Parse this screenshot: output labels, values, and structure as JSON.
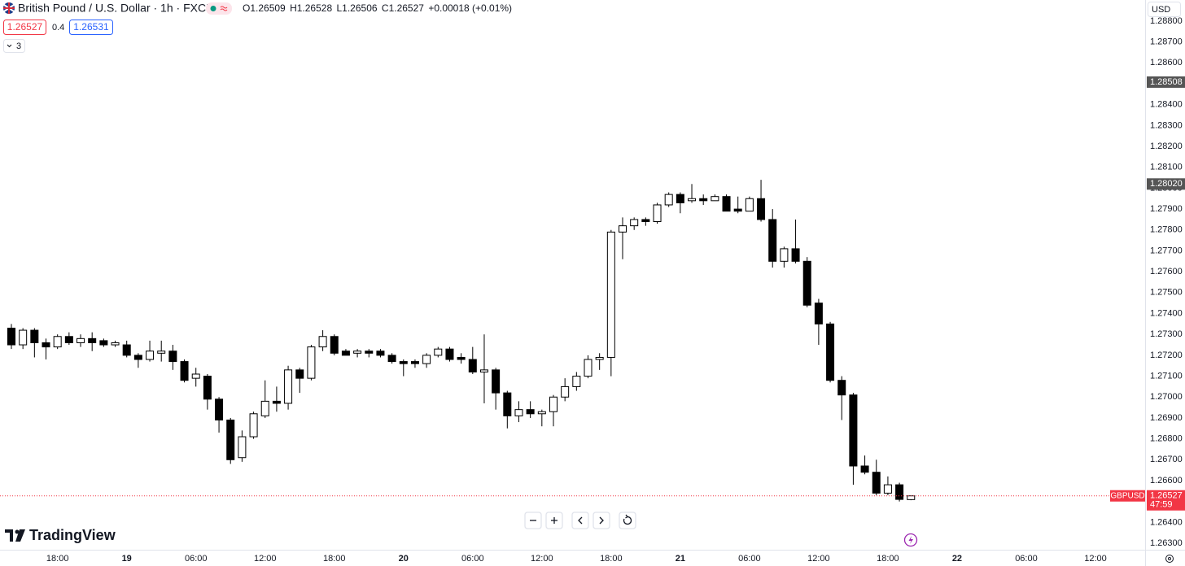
{
  "header": {
    "title": "British Pound / U.S. Dollar · 1h · FXCM",
    "ohlc_letters": [
      "O",
      "H",
      "L",
      "C"
    ],
    "change": "+0.00018 (+0.01%)",
    "sell_price": 1.26527,
    "spread": 0.4,
    "buy_price": 1.26531,
    "indicator_count": 3,
    "logo": "TradingView"
  },
  "chart_data": {
    "type": "candlestick",
    "currency": "USD",
    "categories": [
      null,
      null,
      null,
      null,
      "18:00",
      null,
      null,
      null,
      null,
      null,
      "19",
      null,
      null,
      null,
      null,
      null,
      "06:00",
      null,
      null,
      null,
      null,
      null,
      "12:00",
      null,
      null,
      null,
      null,
      null,
      "18:00",
      null,
      null,
      null,
      null,
      null,
      "20",
      null,
      null,
      null,
      null,
      null,
      "06:00",
      null,
      null,
      null,
      null,
      null,
      "12:00",
      null,
      null,
      null,
      null,
      null,
      "18:00",
      null,
      null,
      null,
      null,
      null,
      "21",
      null,
      null,
      null,
      null,
      null,
      "06:00",
      null,
      null,
      null,
      null,
      null,
      "12:00",
      null,
      null,
      null,
      null,
      null,
      "18:00",
      null,
      null,
      null,
      null,
      null,
      "22",
      null,
      null,
      null,
      null,
      null,
      "06:00",
      null,
      null,
      null,
      null,
      null,
      "12:00"
    ],
    "open": [
      1.2733,
      1.2725,
      1.2732,
      1.2726,
      1.2724,
      1.2729,
      1.2726,
      1.2728,
      1.2727,
      1.2725,
      1.2725,
      1.272,
      1.2718,
      1.2721,
      1.2722,
      1.2717,
      1.2709,
      1.271,
      1.2699,
      1.2689,
      1.2671,
      1.2681,
      1.2691,
      1.2698,
      1.2697,
      1.2713,
      1.2709,
      1.2724,
      1.2729,
      1.2722,
      1.2721,
      1.2722,
      1.2722,
      1.272,
      1.2717,
      1.2717,
      1.2716,
      1.272,
      1.2723,
      1.2719,
      1.2718,
      1.2712,
      1.2713,
      1.2702,
      1.2691,
      1.2694,
      1.2692,
      1.2693,
      1.27,
      1.2705,
      1.271,
      1.2718,
      1.2719,
      1.2779,
      1.2782,
      1.2785,
      1.2784,
      1.2792,
      1.2797,
      1.2794,
      1.2795,
      1.2794,
      1.2796,
      1.279,
      1.2789,
      1.2795,
      1.2785,
      1.2765,
      1.2771,
      1.2765,
      1.2745,
      1.2735,
      1.2708,
      1.2701,
      1.2667,
      1.2664,
      1.2654,
      1.2658,
      1.26509,
      null,
      null,
      null,
      null,
      null,
      null,
      null,
      null,
      null,
      null,
      null,
      null,
      null,
      null,
      null,
      null
    ],
    "high": [
      1.2735,
      1.2733,
      1.2733,
      1.2728,
      1.273,
      1.2731,
      1.273,
      1.2731,
      1.2728,
      1.2727,
      1.2727,
      1.2721,
      1.2727,
      1.2727,
      1.2725,
      1.2718,
      1.2714,
      1.2711,
      1.27,
      1.269,
      1.2684,
      1.2693,
      1.2708,
      1.2705,
      1.2715,
      1.2714,
      1.2725,
      1.2732,
      1.273,
      1.2723,
      1.2723,
      1.2723,
      1.2723,
      1.2721,
      1.2718,
      1.2718,
      1.2721,
      1.2724,
      1.2724,
      1.2721,
      1.2724,
      1.273,
      1.2714,
      1.2703,
      1.2698,
      1.2698,
      1.2694,
      1.2701,
      1.2709,
      1.2712,
      1.272,
      1.2721,
      1.278,
      1.2786,
      1.2786,
      1.2786,
      1.2793,
      1.2798,
      1.2798,
      1.2802,
      1.2797,
      1.2797,
      1.2797,
      1.2796,
      1.2796,
      1.2804,
      1.279,
      1.2772,
      1.2785,
      1.2767,
      1.2747,
      1.2736,
      1.271,
      1.2702,
      1.2672,
      1.267,
      1.2662,
      1.2659,
      1.26528,
      null,
      null,
      null,
      null,
      null,
      null,
      null,
      null,
      null,
      null,
      null,
      null,
      null,
      null,
      null,
      null
    ],
    "low": [
      1.2723,
      1.2723,
      1.2719,
      1.2718,
      1.2723,
      1.2725,
      1.2724,
      1.2722,
      1.2724,
      1.2724,
      1.2719,
      1.2714,
      1.2717,
      1.2717,
      1.2713,
      1.2707,
      1.2705,
      1.2694,
      1.2683,
      1.2668,
      1.2669,
      1.268,
      1.269,
      1.2693,
      1.2694,
      1.2702,
      1.2708,
      1.2722,
      1.272,
      1.272,
      1.2719,
      1.2719,
      1.2719,
      1.2716,
      1.271,
      1.2714,
      1.2714,
      1.2719,
      1.2717,
      1.2716,
      1.2711,
      1.2697,
      1.2694,
      1.2685,
      1.2688,
      1.269,
      1.2686,
      1.2686,
      1.2698,
      1.2703,
      1.2709,
      1.2713,
      1.271,
      1.2766,
      1.278,
      1.2782,
      1.2783,
      1.2791,
      1.2788,
      1.2793,
      1.2792,
      1.2794,
      1.2789,
      1.2788,
      1.2789,
      1.2784,
      1.2762,
      1.2762,
      1.2764,
      1.2743,
      1.2725,
      1.2707,
      1.2689,
      1.2658,
      1.2663,
      1.2653,
      1.2653,
      1.265,
      1.26506,
      null,
      null,
      null,
      null,
      null,
      null,
      null,
      null,
      null,
      null,
      null,
      null,
      null,
      null,
      null,
      null
    ],
    "close": [
      1.2725,
      1.2732,
      1.2726,
      1.2724,
      1.2729,
      1.2726,
      1.2728,
      1.2726,
      1.2725,
      1.2726,
      1.272,
      1.2718,
      1.2722,
      1.2722,
      1.2717,
      1.2708,
      1.2711,
      1.2699,
      1.2689,
      1.267,
      1.2681,
      1.2692,
      1.2698,
      1.2697,
      1.2713,
      1.2709,
      1.2724,
      1.2729,
      1.2721,
      1.272,
      1.2722,
      1.2721,
      1.272,
      1.2717,
      1.2716,
      1.2716,
      1.272,
      1.2723,
      1.2718,
      1.2718,
      1.2712,
      1.2713,
      1.2702,
      1.2691,
      1.2694,
      1.2692,
      1.2693,
      1.27,
      1.2705,
      1.271,
      1.2718,
      1.2719,
      1.2779,
      1.2782,
      1.2785,
      1.2784,
      1.2792,
      1.2797,
      1.2793,
      1.2795,
      1.2794,
      1.2796,
      1.2789,
      1.2789,
      1.2795,
      1.2785,
      1.2765,
      1.2771,
      1.2765,
      1.2744,
      1.2735,
      1.2708,
      1.2701,
      1.2667,
      1.2664,
      1.2654,
      1.2658,
      1.2651,
      1.26527,
      null,
      null,
      null,
      null,
      null,
      null,
      null,
      null,
      null,
      null,
      null,
      null,
      null,
      null,
      null,
      null
    ],
    "up_color": "#ffffff",
    "down_color": "#000000",
    "wick_color": "#000000",
    "ylim": [
      1.26269,
      1.28901
    ],
    "yticks": [
      {
        "value": 1.263,
        "label": "1.26300"
      },
      {
        "value": 1.264,
        "label": "1.26400"
      },
      {
        "value": 1.265,
        "label": "1.26500"
      },
      {
        "value": 1.266,
        "label": "1.26600"
      },
      {
        "value": 1.267,
        "label": "1.26700"
      },
      {
        "value": 1.268,
        "label": "1.26800"
      },
      {
        "value": 1.269,
        "label": "1.26900"
      },
      {
        "value": 1.27,
        "label": "1.27000"
      },
      {
        "value": 1.271,
        "label": "1.27100"
      },
      {
        "value": 1.272,
        "label": "1.27200"
      },
      {
        "value": 1.273,
        "label": "1.27300"
      },
      {
        "value": 1.274,
        "label": "1.27400"
      },
      {
        "value": 1.275,
        "label": "1.27500"
      },
      {
        "value": 1.276,
        "label": "1.27600"
      },
      {
        "value": 1.277,
        "label": "1.27700"
      },
      {
        "value": 1.278,
        "label": "1.27800"
      },
      {
        "value": 1.279,
        "label": "1.27900"
      },
      {
        "value": 1.28,
        "label": "1.28000"
      },
      {
        "value": 1.281,
        "label": "1.28100"
      },
      {
        "value": 1.282,
        "label": "1.28200"
      },
      {
        "value": 1.283,
        "label": "1.28300"
      },
      {
        "value": 1.284,
        "label": "1.28400"
      },
      {
        "value": 1.285,
        "label": "1.28500"
      },
      {
        "value": 1.286,
        "label": "1.28600"
      },
      {
        "value": 1.287,
        "label": "1.28700"
      },
      {
        "value": 1.288,
        "label": "1.28800"
      }
    ],
    "grid": false,
    "price_markers": [
      1.28508,
      {
        "value": 1.2802,
        "label": "1.28020"
      }
    ],
    "marker_color": "#555555",
    "last_price": {
      "value": 1.26527,
      "countdown": "47:59",
      "symbol": "GBPUSD",
      "color": "#f23645"
    }
  }
}
